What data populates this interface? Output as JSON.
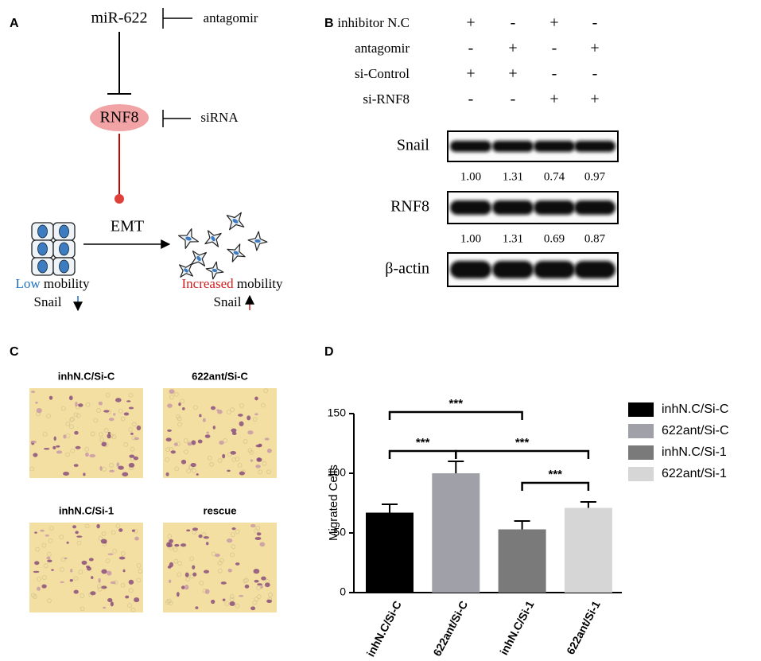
{
  "panel_a": {
    "label": "A",
    "mirna": "miR-622",
    "mirna_inhibitor": "antagomir",
    "target": "RNF8",
    "target_inhibitor": "siRNA",
    "process": "EMT",
    "left_state": {
      "highlight": "Low",
      "text": "mobility",
      "marker": "Snail"
    },
    "right_state": {
      "highlight": "Increased",
      "text": "mobility",
      "marker": "Snail"
    }
  },
  "panel_b": {
    "label": "B",
    "conditions": [
      {
        "name": "inhibitor N.C",
        "signs": [
          "+",
          "-",
          "+",
          "-"
        ]
      },
      {
        "name": "antagomir",
        "signs": [
          "-",
          "+",
          "-",
          "+"
        ]
      },
      {
        "name": "si-Control",
        "signs": [
          "+",
          "+",
          "-",
          "-"
        ]
      },
      {
        "name": "si-RNF8",
        "signs": [
          "-",
          "-",
          "+",
          "+"
        ]
      }
    ],
    "blots": [
      {
        "name": "Snail",
        "ratios": [
          "1.00",
          "1.31",
          "0.74",
          "0.97"
        ]
      },
      {
        "name": "RNF8",
        "ratios": [
          "1.00",
          "1.31",
          "0.69",
          "0.87"
        ]
      },
      {
        "name": "β-actin"
      }
    ]
  },
  "panel_c": {
    "label": "C",
    "images": [
      {
        "title": "inhN.C/Si-C"
      },
      {
        "title": "622ant/Si-C"
      },
      {
        "title": "inhN.C/Si-1"
      },
      {
        "title": "rescue"
      }
    ]
  },
  "chart_data": {
    "type": "bar",
    "label": "D",
    "y_label": "Migrated Cells",
    "categories": [
      "inhN.C/Si-C",
      "622ant/Si-C",
      "inhN.C/Si-1",
      "622ant/Si-1"
    ],
    "values": [
      67,
      100,
      53,
      71
    ],
    "errors": [
      7,
      10,
      7,
      5
    ],
    "colors": [
      "#000000",
      "#a0a0a8",
      "#7a7a7a",
      "#d6d6d6"
    ],
    "ylim": [
      0,
      150
    ],
    "yticks": [
      0,
      50,
      100,
      150
    ],
    "legend": "right",
    "significance": [
      {
        "text": "***",
        "pair": [
          "inhN.C/Si-C",
          "inhN.C/Si-1"
        ]
      },
      {
        "text": "***",
        "pair": [
          "inhN.C/Si-C",
          "622ant/Si-C"
        ]
      },
      {
        "text": "***",
        "pair": [
          "622ant/Si-C",
          "622ant/Si-1"
        ]
      },
      {
        "text": "***",
        "pair": [
          "inhN.C/Si-1",
          "622ant/Si-1"
        ]
      }
    ]
  }
}
